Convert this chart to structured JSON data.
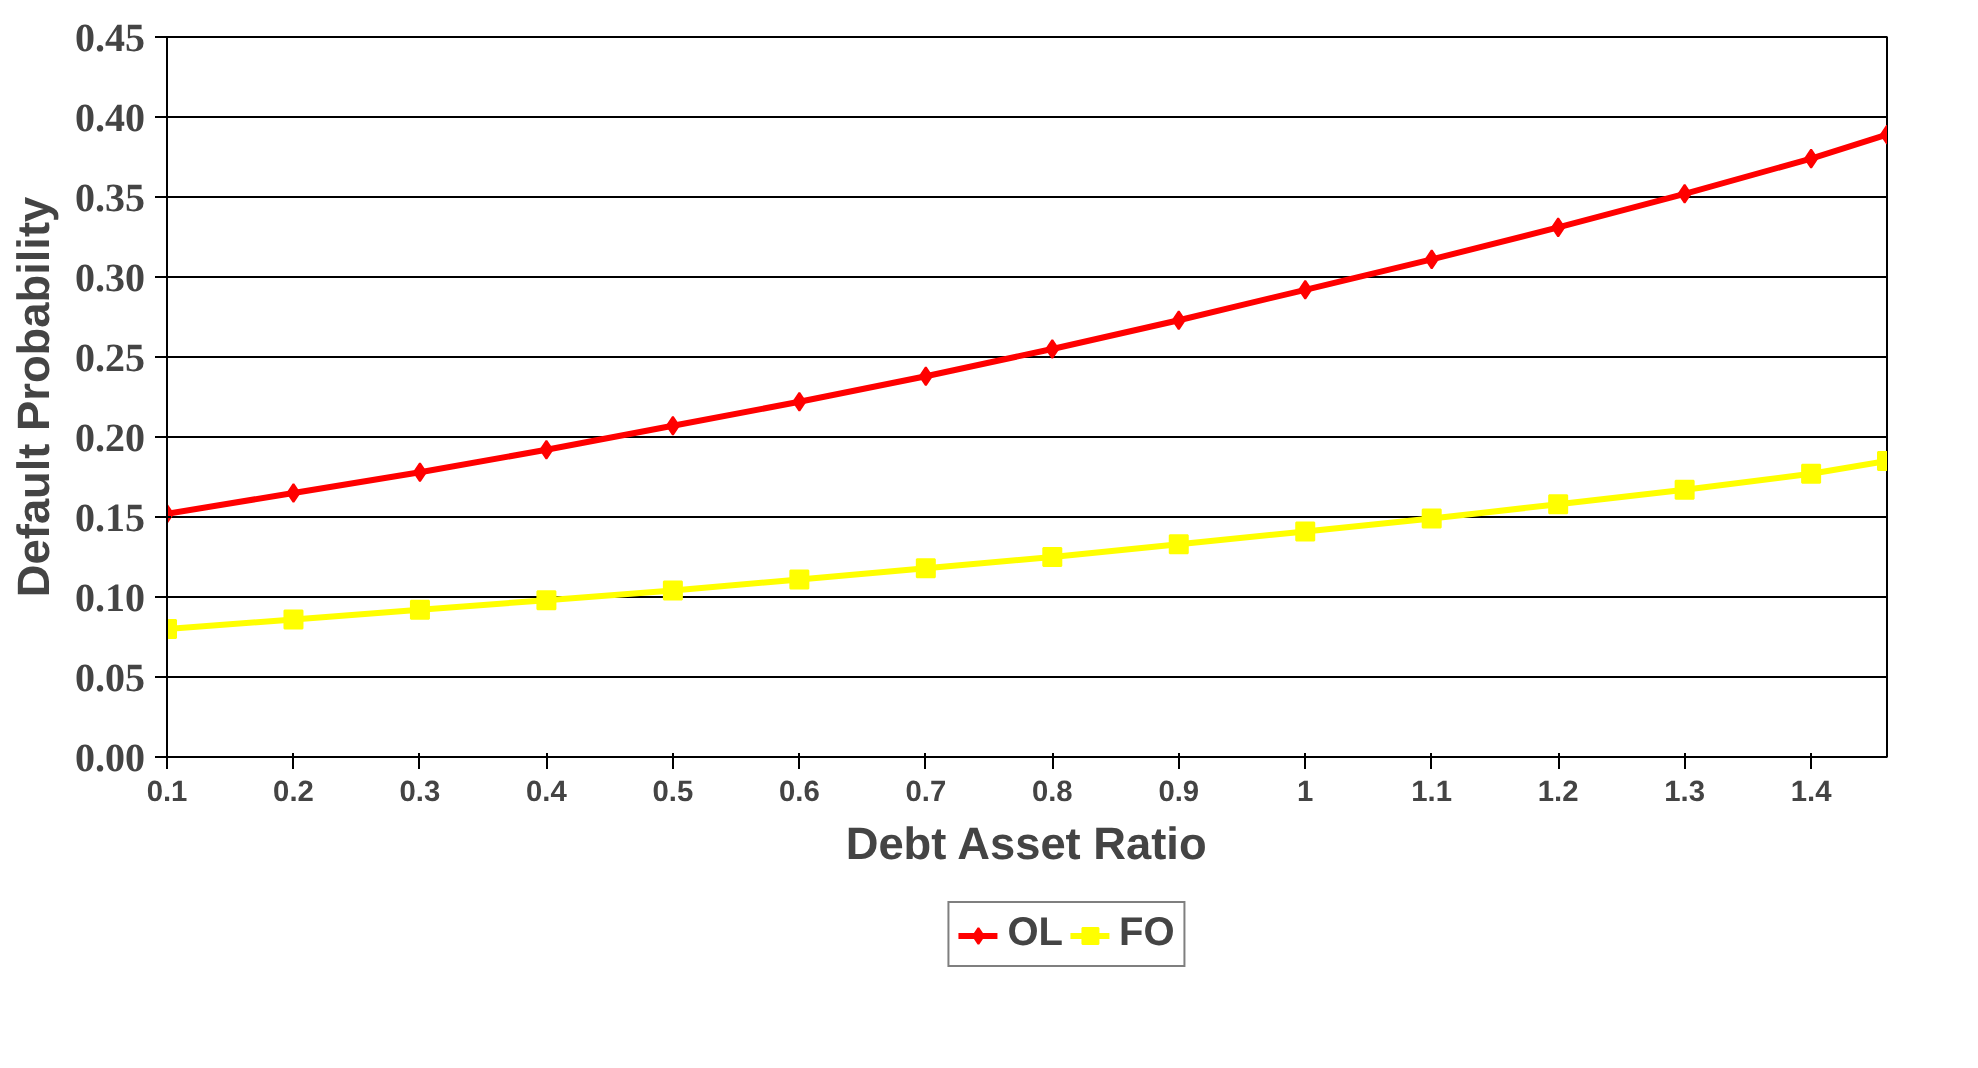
{
  "chart_data": {
    "type": "line",
    "xlabel": "Debt Asset Ratio",
    "ylabel": "Default Probability",
    "x": [
      0.1,
      0.2,
      0.3,
      0.4,
      0.5,
      0.6,
      0.7,
      0.8,
      0.9,
      1.0,
      1.1,
      1.2,
      1.3,
      1.4,
      1.46
    ],
    "series": [
      {
        "name": "OL",
        "color": "#ff0000",
        "marker": "diamond",
        "values": [
          0.152,
          0.165,
          0.178,
          0.192,
          0.207,
          0.222,
          0.238,
          0.255,
          0.273,
          0.292,
          0.311,
          0.331,
          0.352,
          0.374,
          0.389
        ]
      },
      {
        "name": "FO",
        "color": "#ffff00",
        "marker": "square",
        "values": [
          0.08,
          0.086,
          0.092,
          0.098,
          0.104,
          0.111,
          0.118,
          0.125,
          0.133,
          0.141,
          0.149,
          0.158,
          0.167,
          0.177,
          0.185
        ]
      }
    ],
    "xlim": [
      0.1,
      1.46
    ],
    "xticks": [
      0.1,
      0.2,
      0.3,
      0.4,
      0.5,
      0.6,
      0.7,
      0.8,
      0.9,
      {
        "value": 1.0,
        "label": "1"
      },
      1.1,
      1.2,
      1.3,
      1.4
    ],
    "ylim": [
      0,
      0.45
    ],
    "yticks": [
      {
        "value": 0,
        "label": "0.00"
      },
      {
        "value": 0.05,
        "label": "0.05"
      },
      {
        "value": 0.1,
        "label": "0.10"
      },
      {
        "value": 0.15,
        "label": "0.15"
      },
      {
        "value": 0.2,
        "label": "0.20"
      },
      {
        "value": 0.25,
        "label": "0.25"
      },
      {
        "value": 0.3,
        "label": "0.30"
      },
      {
        "value": 0.35,
        "label": "0.35"
      },
      {
        "value": 0.4,
        "label": "0.40"
      },
      {
        "value": 0.45,
        "label": "0.45"
      }
    ],
    "grid": "y",
    "legend": "bottom",
    "line_style": "solid"
  }
}
